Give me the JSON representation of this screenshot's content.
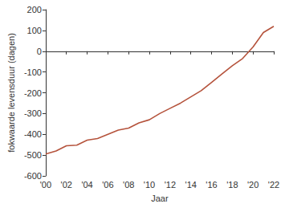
{
  "chart_data": {
    "type": "line",
    "x_label": "Jaar",
    "y_label": "fokwaarde levensduur (dagen)",
    "x": [
      2000,
      2001,
      2002,
      2003,
      2004,
      2005,
      2006,
      2007,
      2008,
      2009,
      2010,
      2011,
      2012,
      2013,
      2014,
      2015,
      2016,
      2017,
      2018,
      2019,
      2020,
      2021,
      2022
    ],
    "values": [
      -495,
      -480,
      -455,
      -452,
      -428,
      -420,
      -400,
      -380,
      -370,
      -345,
      -330,
      -300,
      -275,
      -250,
      -220,
      -190,
      -150,
      -110,
      -70,
      -35,
      20,
      90,
      120
    ],
    "color": "#b5533c",
    "xlim": [
      2000,
      2022
    ],
    "xticks": [
      {
        "value": 2000,
        "label": "'00"
      },
      {
        "value": 2002,
        "label": "'02"
      },
      {
        "value": 2004,
        "label": "'04"
      },
      {
        "value": 2006,
        "label": "'06"
      },
      {
        "value": 2008,
        "label": "'08"
      },
      {
        "value": 2010,
        "label": "'10"
      },
      {
        "value": 2012,
        "label": "'12"
      },
      {
        "value": 2014,
        "label": "'14"
      },
      {
        "value": 2016,
        "label": "'16"
      },
      {
        "value": 2018,
        "label": "'18"
      },
      {
        "value": 2020,
        "label": "'20"
      },
      {
        "value": 2022,
        "label": "'22"
      }
    ],
    "ylim": [
      -600,
      200
    ],
    "yticks": [
      -600,
      -500,
      -400,
      -300,
      -200,
      -100,
      0,
      100,
      200
    ],
    "grid": false
  }
}
